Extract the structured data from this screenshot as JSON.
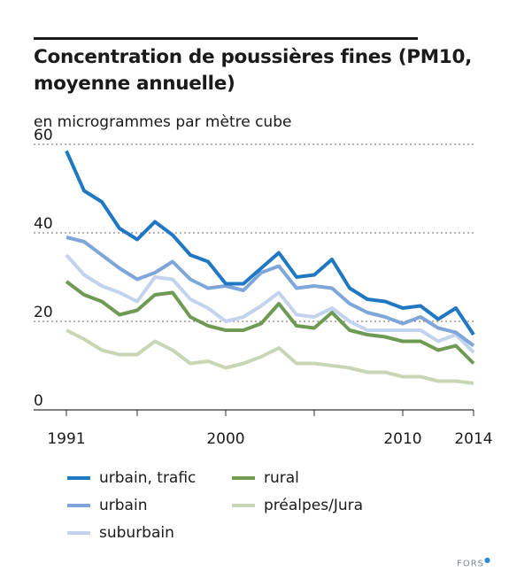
{
  "title": "Concentration de poussières fines (PM10, moyenne annuelle)",
  "source": "FORS",
  "chart_data": {
    "type": "line",
    "title": "Concentration de poussières fines (PM10, moyenne annuelle)",
    "subtitle": "en microgrammes par mètre cube",
    "ylim": [
      0,
      60
    ],
    "xlim": [
      1991,
      2014
    ],
    "yticks": [
      0,
      20,
      40,
      60
    ],
    "xticks": [
      1991,
      2000,
      2010,
      2014
    ],
    "grid": "horizontal dotted",
    "legend_position": "bottom",
    "x": [
      1991,
      1992,
      1993,
      1994,
      1995,
      1996,
      1997,
      1998,
      1999,
      2000,
      2001,
      2002,
      2003,
      2004,
      2005,
      2006,
      2007,
      2008,
      2009,
      2010,
      2011,
      2012,
      2013,
      2014
    ],
    "series": [
      {
        "name": "urbain, trafic",
        "color": "#1f78c1",
        "values": [
          58.5,
          49.5,
          47,
          41,
          38.5,
          42.5,
          39.5,
          35,
          33.5,
          28.5,
          28.5,
          32,
          35.5,
          30,
          30.5,
          34,
          27.5,
          25,
          24.5,
          23,
          23.5,
          20.5,
          23,
          17
        ]
      },
      {
        "name": "urbain",
        "color": "#7ea6d8",
        "values": [
          39,
          38,
          35,
          32,
          29.5,
          31,
          33.5,
          29.5,
          27.5,
          28,
          27,
          31,
          32.5,
          27.5,
          28,
          27.5,
          24,
          22,
          21,
          19.5,
          21,
          18.5,
          17.5,
          14.5
        ]
      },
      {
        "name": "suburbain",
        "color": "#c3d3ee",
        "values": [
          35,
          30.5,
          28,
          26.5,
          24.5,
          30,
          29.5,
          25,
          23,
          20,
          21,
          23.5,
          26.5,
          21.5,
          21,
          23,
          20,
          18,
          18,
          18,
          18,
          15.5,
          17,
          13
        ]
      },
      {
        "name": "rural",
        "color": "#6e9a54",
        "values": [
          29,
          26,
          24.5,
          21.5,
          22.5,
          26,
          26.5,
          21,
          19,
          18,
          18,
          19.5,
          24,
          19,
          18.5,
          22,
          18,
          17,
          16.5,
          15.5,
          15.5,
          13.5,
          14.5,
          10.5
        ]
      },
      {
        "name": "préalpes/Jura",
        "color": "#c9d6b6",
        "values": [
          18,
          16,
          13.5,
          12.5,
          12.5,
          15.5,
          13.5,
          10.5,
          11,
          9.5,
          10.5,
          12,
          14,
          10.5,
          10.5,
          10,
          9.5,
          8.5,
          8.5,
          7.5,
          7.5,
          6.5,
          6.5,
          6
        ]
      }
    ]
  }
}
